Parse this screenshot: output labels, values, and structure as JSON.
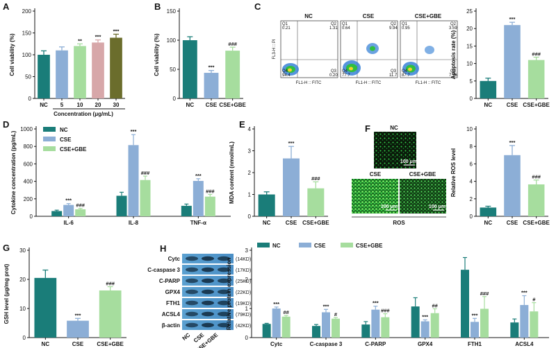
{
  "colors": {
    "NC": "#1a7d79",
    "CSE": "#8caed6",
    "CSEGBE": "#a6dd9e",
    "c20": "#d7a7a9",
    "c30": "#6b6d2c"
  },
  "chart_data": [
    {
      "id": "A",
      "label": "A",
      "type": "bar",
      "categories": [
        "NC",
        "5",
        "10",
        "20",
        "30"
      ],
      "values": [
        100,
        110,
        120,
        128,
        139
      ],
      "errors": [
        9,
        8,
        5,
        6,
        8
      ],
      "sig": [
        "",
        "",
        "**",
        "***",
        "***"
      ],
      "bar_colors": [
        "#1a7d79",
        "#8caed6",
        "#a6dd9e",
        "#d7a7a9",
        "#6b6d2c"
      ],
      "ylabel": "Cell viability (%)",
      "xlabel": "Concentration (μg/mL)",
      "ylim": [
        0,
        200
      ],
      "yticks": [
        0,
        50,
        100,
        150,
        200
      ]
    },
    {
      "id": "B",
      "label": "B",
      "type": "bar",
      "categories": [
        "NC",
        "CSE",
        "CSE+GBE"
      ],
      "values": [
        100,
        44,
        82
      ],
      "errors": [
        6,
        4,
        6
      ],
      "sig": [
        "",
        "***",
        "###"
      ],
      "bar_colors": [
        "#1a7d79",
        "#8caed6",
        "#a6dd9e"
      ],
      "ylabel": "Cell viability (%)",
      "xlabel": "",
      "ylim": [
        0,
        150
      ],
      "yticks": [
        0,
        50,
        100,
        150
      ]
    },
    {
      "id": "C",
      "label": "C",
      "type": "bar",
      "categories": [
        "NC",
        "CSE",
        "CSE+GBE"
      ],
      "values": [
        5,
        21,
        11
      ],
      "errors": [
        0.8,
        0.8,
        0.8
      ],
      "sig": [
        "",
        "***",
        "###"
      ],
      "bar_colors": [
        "#1a7d79",
        "#8caed6",
        "#a6dd9e"
      ],
      "ylabel": "Apoptosis rate (%)",
      "xlabel": "",
      "ylim": [
        0,
        25
      ],
      "yticks": [
        0,
        5,
        10,
        15,
        20,
        25
      ]
    },
    {
      "id": "D",
      "label": "D",
      "type": "bar",
      "categories": [
        "IL-6",
        "IL-8",
        "TNF-α"
      ],
      "series": [
        {
          "name": "NC",
          "values": [
            60,
            235,
            120
          ],
          "errors": [
            10,
            40,
            20
          ],
          "sig": [
            "",
            "",
            ""
          ]
        },
        {
          "name": "CSE",
          "values": [
            130,
            815,
            405
          ],
          "errors": [
            15,
            120,
            25
          ],
          "sig": [
            "***",
            "***",
            "***"
          ]
        },
        {
          "name": "CSE+GBE",
          "values": [
            80,
            415,
            225
          ],
          "errors": [
            10,
            45,
            25
          ],
          "sig": [
            "###",
            "###",
            "###"
          ]
        }
      ],
      "ylabel": "Cytokine concentration (pg/mL)",
      "xlabel": "",
      "ylim": [
        0,
        1000
      ],
      "yticks": [
        0,
        200,
        400,
        600,
        800,
        1000
      ],
      "legend": [
        "NC",
        "CSE",
        "CSE+GBE"
      ]
    },
    {
      "id": "E",
      "label": "E",
      "type": "bar",
      "categories": [
        "NC",
        "CSE",
        "CSE+GBE"
      ],
      "values": [
        1.0,
        2.65,
        1.28
      ],
      "errors": [
        0.12,
        0.55,
        0.3
      ],
      "sig": [
        "",
        "***",
        "###"
      ],
      "bar_colors": [
        "#1a7d79",
        "#8caed6",
        "#a6dd9e"
      ],
      "ylabel": "MDA content (nmol/mL)",
      "xlabel": "",
      "ylim": [
        0,
        4
      ],
      "yticks": [
        0,
        1,
        2,
        3,
        4
      ]
    },
    {
      "id": "Fb",
      "label": "",
      "type": "bar",
      "categories": [
        "NC",
        "CSE",
        "CSE+GBE"
      ],
      "values": [
        1.0,
        7.0,
        3.65
      ],
      "errors": [
        0.15,
        1.1,
        0.5
      ],
      "sig": [
        "",
        "***",
        "###"
      ],
      "bar_colors": [
        "#1a7d79",
        "#8caed6",
        "#a6dd9e"
      ],
      "ylabel": "Relative ROS level",
      "xlabel": "",
      "ylim": [
        0,
        10
      ],
      "yticks": [
        0,
        2,
        4,
        6,
        8,
        10
      ]
    },
    {
      "id": "G",
      "label": "G",
      "type": "bar",
      "categories": [
        "NC",
        "CSE",
        "CSE+GBE"
      ],
      "values": [
        20.5,
        5.8,
        16.2
      ],
      "errors": [
        2.7,
        0.8,
        1.3
      ],
      "sig": [
        "",
        "***",
        "###"
      ],
      "bar_colors": [
        "#1a7d79",
        "#8caed6",
        "#a6dd9e"
      ],
      "ylabel": "GSH level (μg/mg prot)",
      "xlabel": "",
      "ylim": [
        0,
        30
      ],
      "yticks": [
        0,
        10,
        20,
        30
      ]
    },
    {
      "id": "H",
      "label": "",
      "type": "bar",
      "categories": [
        "Cytc",
        "C-caspase 3",
        "C-PARP",
        "GPX4",
        "FTH1",
        "ACSL4"
      ],
      "series": [
        {
          "name": "NC",
          "values": [
            0.47,
            0.4,
            0.45,
            1.07,
            2.33,
            0.52
          ],
          "errors": [
            0.02,
            0.05,
            0.1,
            0.3,
            0.42,
            0.12
          ],
          "sig": [
            "",
            "",
            "",
            "",
            "",
            ""
          ]
        },
        {
          "name": "CSE",
          "values": [
            1.0,
            0.87,
            0.96,
            0.56,
            0.54,
            1.12
          ],
          "errors": [
            0.05,
            0.1,
            0.12,
            0.05,
            0.12,
            0.32
          ],
          "sig": [
            "***",
            "***",
            "***",
            "***",
            "***",
            "***"
          ]
        },
        {
          "name": "CSE+GBE",
          "values": [
            0.72,
            0.65,
            0.7,
            0.84,
            0.99,
            0.9
          ],
          "errors": [
            0.04,
            0.04,
            0.12,
            0.15,
            0.42,
            0.3
          ],
          "sig": [
            "##",
            "#",
            "###",
            "##",
            "###",
            "#"
          ]
        }
      ],
      "ylabel": "Relative protein expression",
      "xlabel": "",
      "ylim": [
        0,
        3
      ],
      "yticks": [
        0,
        1,
        2,
        3
      ],
      "legend": [
        "NC",
        "CSE",
        "CSE+GBE"
      ]
    }
  ],
  "flow": {
    "label": "C",
    "panels": [
      {
        "title": "NC",
        "q1": "Q1",
        "q1v": "0.21",
        "q2": "Q2",
        "q2v": "1.31",
        "q3": "Q3",
        "q3v": "0.20",
        "q4": "Q4",
        "q4v": "94.4"
      },
      {
        "title": "CSE",
        "q1": "Q1",
        "q1v": "0.64",
        "q2": "Q2",
        "q2v": "9.94",
        "q3": "Q3",
        "q3v": "11.7",
        "q4": "Q4",
        "q4v": "77.7"
      },
      {
        "title": "CSE+GBE",
        "q1": "Q1",
        "q1v": "0.95",
        "q2": "Q2",
        "q2v": "3.59",
        "q3": "Q3",
        "q3v": "7.76",
        "q4": "Q4",
        "q4v": "87.7"
      }
    ],
    "x_label": "FL1-H :: FITC",
    "y_label": "FL3-H :: PI"
  },
  "ros_images": {
    "label": "F",
    "nc_title": "NC",
    "cse_title": "CSE",
    "gbe_title": "CSE+GBE",
    "scale": "100 μm",
    "caption": "ROS"
  },
  "western": {
    "label": "H",
    "rows": [
      {
        "name": "Cytc",
        "kd": "(14KD)"
      },
      {
        "name": "C-caspase 3",
        "kd": "(17KD)"
      },
      {
        "name": "C-PARP",
        "kd": "(25KD)"
      },
      {
        "name": "GPX4",
        "kd": "(22KD)"
      },
      {
        "name": "FTH1",
        "kd": "(19KD)"
      },
      {
        "name": "ACSL4",
        "kd": "(79KD)"
      },
      {
        "name": "β-actin",
        "kd": "(42KD)"
      }
    ],
    "lanes": [
      "NC",
      "CSE",
      "CSE+GBE"
    ]
  }
}
